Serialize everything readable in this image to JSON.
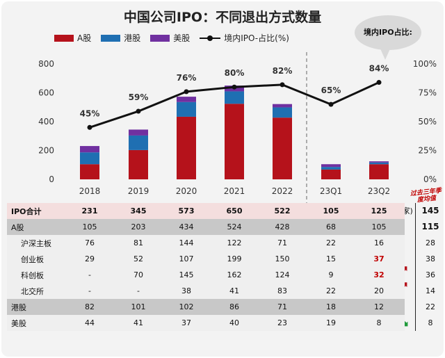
{
  "chart_data": {
    "type": "bar",
    "title": "中国公司IPO：不同退出方式数量",
    "categories": [
      "2018",
      "2019",
      "2020",
      "2021",
      "2022",
      "23Q1",
      "23Q2"
    ],
    "series": [
      {
        "name": "A股",
        "color": "#b5121b",
        "values": [
          105,
          203,
          434,
          524,
          428,
          68,
          105
        ]
      },
      {
        "name": "港股",
        "color": "#1f6fb2",
        "values": [
          82,
          101,
          102,
          86,
          71,
          18,
          12
        ]
      },
      {
        "name": "美股",
        "color": "#7030a0",
        "values": [
          44,
          41,
          37,
          40,
          23,
          19,
          8
        ]
      }
    ],
    "line_series": {
      "name": "境内IPO-占比(%)",
      "values": [
        45,
        59,
        76,
        80,
        82,
        65,
        84
      ],
      "labels": [
        "45%",
        "59%",
        "76%",
        "80%",
        "82%",
        "65%",
        "84%"
      ]
    },
    "ylim": [
      0,
      800
    ],
    "y_ticks": [
      "0",
      "200",
      "400",
      "600",
      "800"
    ],
    "y2lim": [
      0,
      100
    ],
    "y2_ticks": [
      "0%",
      "25%",
      "50%",
      "75%",
      "100%"
    ],
    "bubble_text": "境内IPO占比:"
  },
  "table": {
    "unit": "(家)",
    "past_label": "过去三年季度均值",
    "rows": [
      {
        "label": "IPO合计",
        "values": [
          "231",
          "345",
          "573",
          "650",
          "522",
          "105",
          "125"
        ],
        "avg": "145"
      },
      {
        "label": "A股",
        "values": [
          "105",
          "203",
          "434",
          "524",
          "428",
          "68",
          "105"
        ],
        "avg": "115"
      },
      {
        "label": "沪深主板",
        "values": [
          "76",
          "81",
          "144",
          "122",
          "71",
          "22",
          "16"
        ],
        "avg": "28"
      },
      {
        "label": "创业板",
        "values": [
          "29",
          "52",
          "107",
          "199",
          "150",
          "15",
          "37"
        ],
        "avg": "38"
      },
      {
        "label": "科创板",
        "values": [
          "-",
          "70",
          "145",
          "162",
          "124",
          "9",
          "32"
        ],
        "avg": "36"
      },
      {
        "label": "北交所",
        "values": [
          "-",
          "-",
          "38",
          "41",
          "83",
          "22",
          "20"
        ],
        "avg": "14"
      },
      {
        "label": "港股",
        "values": [
          "82",
          "101",
          "102",
          "86",
          "71",
          "18",
          "12"
        ],
        "avg": "22"
      },
      {
        "label": "美股",
        "values": [
          "44",
          "41",
          "37",
          "40",
          "23",
          "19",
          "8"
        ],
        "avg": "8"
      }
    ]
  },
  "colors": {
    "up_arrow": "#b5121b",
    "down_arrow": "#1f9a3a"
  },
  "icons": [
    "arrow-up-icon",
    "arrow-down-icon"
  ]
}
